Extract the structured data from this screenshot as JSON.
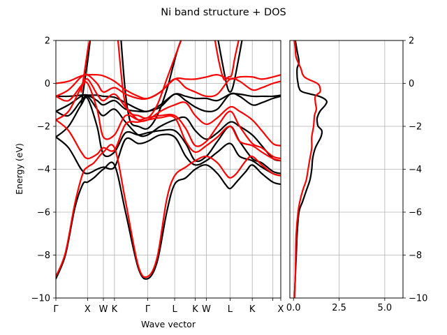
{
  "chart_data": {
    "type": "line",
    "title": "Ni band structure + DOS",
    "bands_panel": {
      "xlabel": "Wave vector",
      "ylabel": "Energy (eV)",
      "ylim": [
        -10,
        2
      ],
      "y_ticks": [
        -10,
        -8,
        -6,
        -4,
        -2,
        0,
        2
      ],
      "grid": true,
      "kpath": [
        {
          "label": "Γ",
          "k": 0.0
        },
        {
          "label": "X",
          "k": 1.0
        },
        {
          "label": "W",
          "k": 1.5
        },
        {
          "label": "K",
          "k": 1.85
        },
        {
          "label": "Γ",
          "k": 2.9
        },
        {
          "label": "L",
          "k": 3.75
        },
        {
          "label": "K",
          "k": 4.4
        },
        {
          "label": "W",
          "k": 4.75
        },
        {
          "label": "L",
          "k": 5.5
        },
        {
          "label": "K",
          "k": 6.2
        },
        {
          "label": "",
          "k": 6.85
        },
        {
          "label": "X",
          "k": 7.1
        }
      ],
      "xlim": [
        0,
        7.1
      ],
      "series": [
        {
          "color": "#000000",
          "bands": [
            {
              "k": [
                0,
                0.3,
                0.6,
                0.85,
                1.0,
                1.2,
                1.5,
                1.85,
                2.2,
                2.6,
                2.9,
                3.2,
                3.5,
                3.75,
                4.1,
                4.4,
                4.75,
                5.1,
                5.35,
                5.5,
                5.7,
                6.0,
                6.2,
                6.5,
                6.85,
                7.1
              ],
              "E": [
                -9.1,
                -8.0,
                -5.8,
                -4.7,
                -4.6,
                -4.4,
                -4.0,
                -3.8,
                -6.0,
                -8.6,
                -9.1,
                -8.3,
                -6.0,
                -4.7,
                -4.4,
                -4.0,
                -3.8,
                -4.2,
                -4.7,
                -4.9,
                -4.6,
                -4.1,
                -3.8,
                -4.2,
                -4.6,
                -4.7
              ]
            },
            {
              "k": [
                0,
                0.4,
                0.8,
                1.0,
                1.3,
                1.5,
                1.85,
                2.2,
                2.6,
                2.9,
                3.3,
                3.75,
                4.1,
                4.4,
                4.75,
                5.1,
                5.5,
                5.8,
                6.2,
                6.5,
                6.85,
                7.1
              ],
              "E": [
                -2.5,
                -3.0,
                -4.0,
                -4.2,
                -4.0,
                -3.9,
                -3.9,
                -2.6,
                -2.8,
                -2.7,
                -2.4,
                -2.5,
                -3.4,
                -3.8,
                -3.6,
                -3.2,
                -2.8,
                -3.4,
                -3.6,
                -3.9,
                -4.2,
                -4.3
              ]
            },
            {
              "k": [
                0,
                0.4,
                0.8,
                1.0,
                1.3,
                1.5,
                1.85,
                2.2,
                2.6,
                2.9,
                3.3,
                3.75,
                4.1,
                4.4,
                4.75,
                5.1,
                5.5,
                5.8,
                6.2,
                6.5,
                6.85,
                7.1
              ],
              "E": [
                -2.5,
                -2.0,
                -1.0,
                -0.7,
                -2.0,
                -3.3,
                -3.2,
                -2.3,
                -2.4,
                -2.3,
                -2.2,
                -2.2,
                -2.8,
                -3.6,
                -3.4,
                -2.7,
                -2.0,
                -2.7,
                -3.5,
                -3.7,
                -4.1,
                -4.2
              ]
            },
            {
              "k": [
                0,
                0.4,
                0.8,
                1.0,
                1.3,
                1.5,
                1.85,
                2.2,
                2.6,
                2.9,
                3.3,
                3.75,
                4.1,
                4.4,
                4.75,
                5.1,
                5.5,
                5.8,
                6.2,
                6.5,
                6.85,
                7.1
              ],
              "E": [
                -1.3,
                -1.5,
                -0.8,
                -0.6,
                -1.2,
                -1.5,
                -1.2,
                -1.8,
                -2.4,
                -2.4,
                -2.0,
                -1.7,
                -1.6,
                -2.2,
                -2.6,
                -2.3,
                -1.8,
                -2.0,
                -2.4,
                -2.9,
                -3.5,
                -3.6
              ]
            },
            {
              "k": [
                0,
                0.4,
                0.8,
                1.0,
                1.3,
                1.5,
                1.85,
                2.2,
                2.6,
                2.9,
                3.3,
                3.75,
                4.1,
                4.4,
                4.75,
                5.1,
                5.5,
                5.8,
                6.2,
                6.5,
                6.85,
                7.1
              ],
              "E": [
                -1.3,
                -1.0,
                -0.6,
                -0.55,
                -0.8,
                -1.0,
                -0.8,
                -1.2,
                -1.3,
                -1.3,
                -1.1,
                -0.5,
                -0.8,
                -1.1,
                -1.3,
                -1.2,
                -0.5,
                -0.6,
                -1.0,
                -0.9,
                -0.7,
                -0.6
              ]
            },
            {
              "k": [
                0,
                0.4,
                0.8,
                1.0,
                1.3,
                1.5,
                1.85,
                2.2,
                2.6,
                2.9,
                3.3,
                3.75,
                4.1,
                4.4,
                4.75,
                5.1,
                5.5,
                5.8,
                6.2,
                6.5,
                6.85,
                7.1
              ],
              "E": [
                -0.6,
                -0.6,
                -0.55,
                -0.55,
                -0.55,
                -0.6,
                -0.65,
                -0.9,
                -1.2,
                -1.3,
                -1.0,
                -0.5,
                -0.6,
                -0.7,
                -0.7,
                -0.8,
                -0.5,
                -0.5,
                -0.6,
                -0.6,
                -0.6,
                -0.55
              ]
            },
            {
              "k": [
                0.8,
                0.9,
                1.0,
                1.05,
                1.1
              ],
              "E": [
                -1.0,
                0.0,
                1.0,
                1.6,
                2.2
              ]
            },
            {
              "k": [
                2.05,
                2.1,
                2.2,
                2.3,
                2.4,
                2.6,
                2.9,
                3.2,
                3.5,
                3.7,
                3.85,
                4.0
              ],
              "E": [
                2.2,
                1.2,
                -0.5,
                -1.5,
                -1.9,
                -2.0,
                -2.1,
                -1.5,
                -0.3,
                0.8,
                1.6,
                2.2
              ]
            },
            {
              "k": [
                5.1,
                5.25,
                5.4,
                5.5,
                5.6,
                5.75,
                5.9
              ],
              "E": [
                2.2,
                1.0,
                -0.1,
                -0.4,
                -0.1,
                1.0,
                2.2
              ]
            }
          ]
        },
        {
          "color": "#ff0000",
          "bands": [
            {
              "k": [
                0,
                0.3,
                0.6,
                0.85,
                1.0,
                1.2,
                1.5,
                1.85,
                2.2,
                2.6,
                2.9,
                3.2,
                3.5,
                3.75,
                4.1,
                4.4,
                4.75,
                5.1,
                5.35,
                5.5,
                5.7,
                6.0,
                6.2,
                6.5,
                6.85,
                7.1
              ],
              "E": [
                -9.0,
                -7.9,
                -5.6,
                -4.2,
                -3.9,
                -3.7,
                -3.2,
                -3.0,
                -5.5,
                -8.5,
                -9.0,
                -8.1,
                -5.4,
                -4.3,
                -3.9,
                -3.6,
                -3.4,
                -3.7,
                -4.2,
                -4.4,
                -4.2,
                -3.6,
                -3.4,
                -3.8,
                -4.2,
                -4.3
              ]
            },
            {
              "k": [
                0,
                0.4,
                0.8,
                1.0,
                1.3,
                1.5,
                1.85,
                2.2,
                2.6,
                2.9,
                3.3,
                3.75,
                4.1,
                4.4,
                4.75,
                5.1,
                5.5,
                5.8,
                6.2,
                6.5,
                6.85,
                7.1
              ],
              "E": [
                -1.7,
                -2.2,
                -3.2,
                -3.5,
                -3.3,
                -3.0,
                -3.1,
                -1.9,
                -1.8,
                -1.7,
                -1.6,
                -1.6,
                -2.7,
                -3.2,
                -2.9,
                -2.5,
                -2.0,
                -2.7,
                -2.9,
                -3.2,
                -3.5,
                -3.6
              ]
            },
            {
              "k": [
                0,
                0.4,
                0.8,
                1.0,
                1.3,
                1.5,
                1.85,
                2.2,
                2.6,
                2.9,
                3.3,
                3.75,
                4.1,
                4.4,
                4.75,
                5.1,
                5.5,
                5.8,
                6.2,
                6.5,
                6.85,
                7.1
              ],
              "E": [
                -1.7,
                -1.3,
                -0.2,
                0.0,
                -1.2,
                -2.5,
                -2.4,
                -1.5,
                -1.7,
                -1.6,
                -1.5,
                -1.5,
                -2.1,
                -2.9,
                -2.7,
                -2.0,
                -1.3,
                -2.0,
                -2.8,
                -3.0,
                -3.4,
                -3.5
              ]
            },
            {
              "k": [
                0,
                0.4,
                0.8,
                1.0,
                1.3,
                1.5,
                1.85,
                2.2,
                2.6,
                2.9,
                3.3,
                3.75,
                4.1,
                4.4,
                4.75,
                5.1,
                5.5,
                5.8,
                6.2,
                6.5,
                6.85,
                7.1
              ],
              "E": [
                -0.6,
                -0.8,
                -0.1,
                0.2,
                -0.5,
                -0.8,
                -0.5,
                -1.1,
                -1.7,
                -1.7,
                -1.3,
                -1.0,
                -0.9,
                -1.5,
                -1.9,
                -1.6,
                -1.1,
                -1.3,
                -1.7,
                -2.2,
                -2.8,
                -2.9
              ]
            },
            {
              "k": [
                0,
                0.4,
                0.8,
                1.0,
                1.3,
                1.5,
                1.85,
                2.2,
                2.6,
                2.9,
                3.3,
                3.75,
                4.1,
                4.4,
                4.75,
                5.1,
                5.5,
                5.8,
                6.2,
                6.5,
                6.85,
                7.1
              ],
              "E": [
                -0.6,
                -0.3,
                0.3,
                0.4,
                0.0,
                -0.4,
                -0.2,
                -0.5,
                -0.7,
                -0.7,
                -0.4,
                0.2,
                -0.2,
                -0.4,
                -0.6,
                -0.5,
                0.2,
                0.1,
                -0.3,
                -0.2,
                0.0,
                0.1
              ]
            },
            {
              "k": [
                0,
                0.4,
                0.8,
                1.0,
                1.3,
                1.5,
                1.85,
                2.2,
                2.6,
                2.9,
                3.3,
                3.75,
                4.1,
                4.4,
                4.75,
                5.1,
                5.5,
                5.8,
                6.2,
                6.5,
                6.85,
                7.1
              ],
              "E": [
                0.0,
                0.1,
                0.35,
                0.4,
                0.4,
                0.35,
                0.1,
                -0.3,
                -0.6,
                -0.7,
                -0.4,
                0.2,
                0.2,
                0.2,
                0.3,
                0.4,
                0.2,
                0.3,
                0.3,
                0.2,
                0.3,
                0.4
              ]
            },
            {
              "k": [
                0.8,
                0.9,
                1.0,
                1.05,
                1.1
              ],
              "E": [
                -0.4,
                0.5,
                1.5,
                1.9,
                2.2
              ]
            },
            {
              "k": [
                1.95,
                2.0,
                2.1,
                2.2,
                2.35,
                2.6,
                2.9,
                3.2,
                3.5,
                3.75,
                3.9,
                4.0
              ],
              "E": [
                2.2,
                1.4,
                -0.1,
                -1.0,
                -1.4,
                -1.5,
                -1.6,
                -1.0,
                0.2,
                1.2,
                1.8,
                2.2
              ]
            },
            {
              "k": [
                5.0,
                5.15,
                5.3,
                5.45,
                5.55,
                5.65,
                5.8
              ],
              "E": [
                2.2,
                1.0,
                0.2,
                0.3,
                0.4,
                1.2,
                2.2
              ]
            }
          ]
        }
      ]
    },
    "dos_panel": {
      "xlim": [
        -0.2,
        6.0
      ],
      "x_ticks": [
        0.0,
        2.5,
        5.0
      ],
      "x_tick_labels": [
        "0.0",
        "2.5",
        "5.0"
      ],
      "ylim": [
        -10,
        2
      ],
      "y_ticks": [
        -10,
        -8,
        -6,
        -4,
        -2,
        0,
        2
      ],
      "grid": true,
      "series": [
        {
          "color": "#000000",
          "E": [
            -10,
            -9,
            -8,
            -7,
            -6,
            -5.5,
            -5.0,
            -4.5,
            -4.0,
            -3.5,
            -3.0,
            -2.5,
            -2.2,
            -2.0,
            -1.8,
            -1.6,
            -1.3,
            -1.0,
            -0.8,
            -0.6,
            -0.4,
            -0.2,
            0.0,
            0.3,
            0.7,
            1.0,
            1.5,
            2.0
          ],
          "DOS": [
            0.05,
            0.1,
            0.15,
            0.2,
            0.3,
            0.5,
            0.7,
            0.9,
            1.0,
            1.05,
            1.2,
            1.5,
            1.55,
            1.35,
            1.3,
            1.3,
            1.45,
            1.75,
            1.8,
            1.4,
            0.5,
            0.3,
            0.25,
            0.2,
            0.2,
            0.3,
            0.2,
            0.1
          ]
        },
        {
          "color": "#ff0000",
          "E": [
            -10,
            -9,
            -8,
            -7,
            -6,
            -5.5,
            -5.0,
            -4.5,
            -4.0,
            -3.5,
            -3.0,
            -2.5,
            -2.0,
            -1.5,
            -1.2,
            -0.9,
            -0.6,
            -0.4,
            -0.2,
            0.0,
            0.3,
            0.7,
            1.2,
            1.6,
            2.0
          ],
          "DOS": [
            0.05,
            0.1,
            0.12,
            0.15,
            0.25,
            0.35,
            0.5,
            0.7,
            0.8,
            0.9,
            1.0,
            1.0,
            1.1,
            1.15,
            1.25,
            1.2,
            1.2,
            1.45,
            1.45,
            1.3,
            0.6,
            0.4,
            0.15,
            0.1,
            0.05
          ]
        }
      ]
    }
  }
}
